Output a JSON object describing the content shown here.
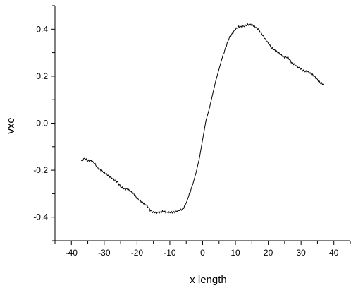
{
  "chart_data": {
    "type": "line",
    "title": "",
    "xlabel": "x length",
    "ylabel": "vxe",
    "xlim": [
      -45,
      45
    ],
    "ylim": [
      -0.5,
      0.5
    ],
    "x_ticks": [
      -40,
      -30,
      -20,
      -10,
      0,
      10,
      20,
      30,
      40
    ],
    "x_tick_labels": [
      "-40",
      "-30",
      "-20",
      "-10",
      "0",
      "10",
      "20",
      "30",
      "40"
    ],
    "y_ticks": [
      -0.4,
      -0.2,
      0.0,
      0.2,
      0.4
    ],
    "y_tick_labels": [
      "-0.4",
      "-0.2",
      "0.0",
      "0.2",
      "0.4"
    ],
    "grid": false,
    "legend": "none",
    "series": [
      {
        "color": "#000000",
        "x": [
          -37,
          -36,
          -35,
          -34,
          -33,
          -32,
          -31,
          -30,
          -29,
          -28,
          -27,
          -26,
          -25,
          -24,
          -23,
          -22,
          -21,
          -20,
          -19,
          -18,
          -17,
          -16,
          -15,
          -14,
          -13,
          -12,
          -11,
          -10,
          -9,
          -8,
          -7,
          -6,
          -5,
          -4,
          -3,
          -2,
          -1,
          0,
          1,
          2,
          3,
          4,
          5,
          6,
          7,
          8,
          9,
          10,
          11,
          12,
          13,
          14,
          15,
          16,
          17,
          18,
          19,
          20,
          21,
          22,
          23,
          24,
          25,
          26,
          27,
          28,
          29,
          30,
          31,
          32,
          33,
          34,
          35,
          36,
          37
        ],
        "y": [
          -0.16,
          -0.15,
          -0.16,
          -0.16,
          -0.17,
          -0.19,
          -0.2,
          -0.21,
          -0.22,
          -0.23,
          -0.24,
          -0.25,
          -0.27,
          -0.28,
          -0.28,
          -0.29,
          -0.3,
          -0.32,
          -0.33,
          -0.34,
          -0.35,
          -0.37,
          -0.38,
          -0.38,
          -0.38,
          -0.375,
          -0.38,
          -0.38,
          -0.38,
          -0.375,
          -0.37,
          -0.365,
          -0.34,
          -0.3,
          -0.26,
          -0.21,
          -0.15,
          -0.07,
          0.01,
          0.06,
          0.12,
          0.18,
          0.23,
          0.28,
          0.32,
          0.36,
          0.38,
          0.4,
          0.41,
          0.41,
          0.415,
          0.42,
          0.42,
          0.41,
          0.4,
          0.38,
          0.36,
          0.34,
          0.32,
          0.31,
          0.3,
          0.29,
          0.28,
          0.28,
          0.26,
          0.25,
          0.24,
          0.23,
          0.22,
          0.22,
          0.21,
          0.2,
          0.185,
          0.17,
          0.165
        ]
      }
    ]
  }
}
